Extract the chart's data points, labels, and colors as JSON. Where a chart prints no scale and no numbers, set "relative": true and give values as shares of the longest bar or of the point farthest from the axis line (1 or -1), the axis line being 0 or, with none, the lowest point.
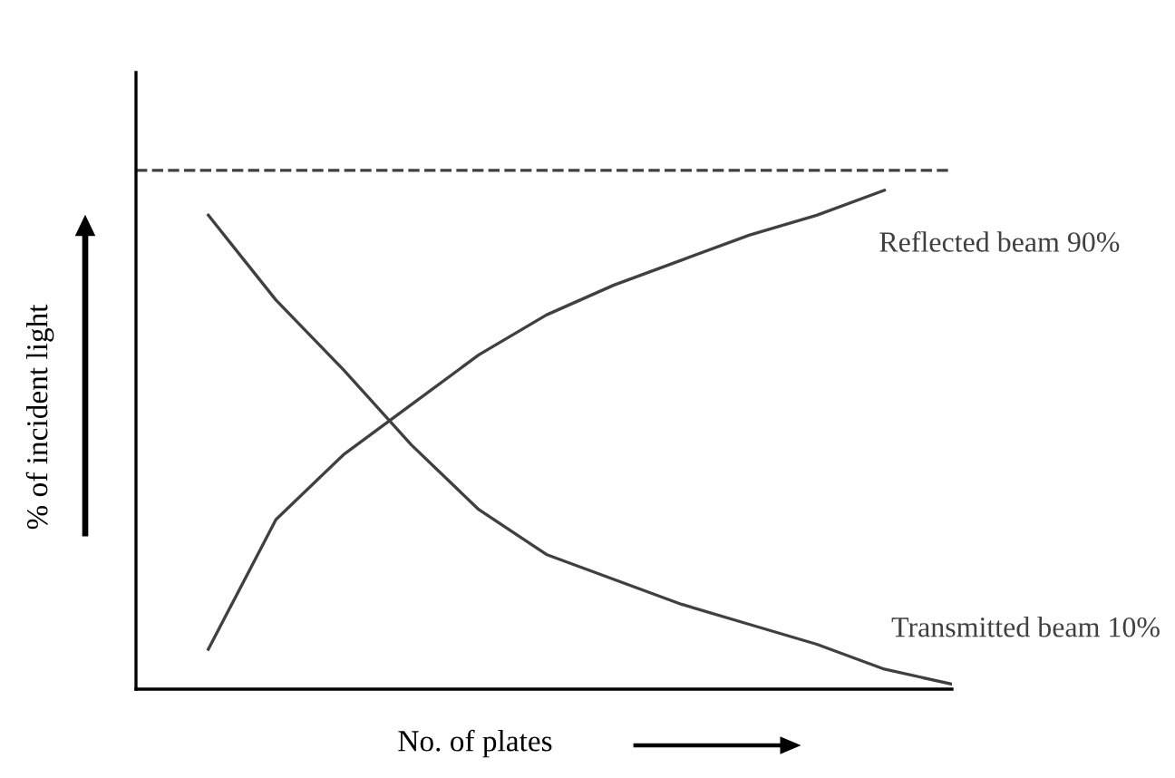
{
  "chart_data": {
    "type": "line",
    "relative": true,
    "xlabel": "No. of plates",
    "ylabel": "% of incident light",
    "categories": [
      null,
      null,
      null,
      null,
      null,
      null,
      null,
      null,
      null,
      null,
      null,
      null
    ],
    "series": [
      {
        "name": "Reflected beam 90%",
        "color": "#404040",
        "values": [
          0.08,
          0.34,
          0.47,
          0.57,
          0.67,
          0.75,
          0.81,
          0.86,
          0.91,
          0.95,
          1.0,
          null
        ]
      },
      {
        "name": "Transmitted beam 10%",
        "color": "#404040",
        "values": [
          0.95,
          0.78,
          0.64,
          0.49,
          0.36,
          0.27,
          0.22,
          0.17,
          0.13,
          0.09,
          0.04,
          0.01
        ]
      }
    ],
    "ref_lines": [
      {
        "axis": "y",
        "value": 1.04,
        "color": "#404040",
        "line_style": "dashed"
      }
    ],
    "legend": false,
    "tick_labels": false,
    "marker": "none",
    "line_style": "solid"
  }
}
